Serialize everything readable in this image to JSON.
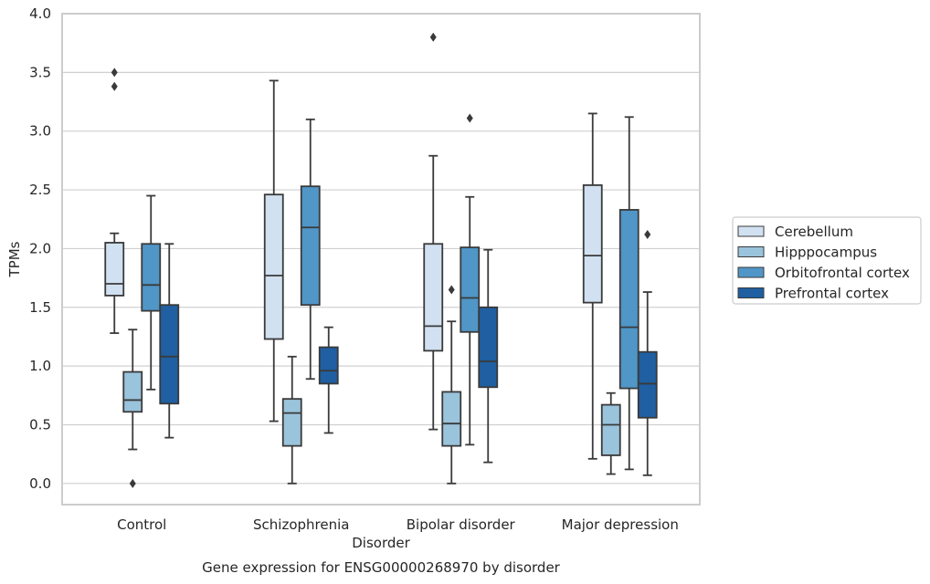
{
  "chart_data": {
    "type": "boxplot",
    "xlabel": "Disorder",
    "ylabel": "TPMs",
    "caption": "Gene expression for ENSG00000268970 by disorder",
    "ylim": [
      -0.18,
      4.0
    ],
    "yticks": [
      "0.0",
      "0.5",
      "1.0",
      "1.5",
      "2.0",
      "2.5",
      "3.0",
      "3.5",
      "4.0"
    ],
    "grid": "horizontal",
    "legend_position": "right",
    "categories": [
      "Control",
      "Schizophrenia",
      "Bipolar disorder",
      "Major depression"
    ],
    "series": [
      {
        "name": "Cerebellum",
        "color": "#d1e1f1",
        "boxes": [
          {
            "whislo": 1.28,
            "q1": 1.6,
            "med": 1.7,
            "q3": 2.05,
            "whishi": 2.13,
            "fliers": [
              3.38,
              3.5
            ]
          },
          {
            "whislo": 0.53,
            "q1": 1.23,
            "med": 1.77,
            "q3": 2.46,
            "whishi": 3.43,
            "fliers": []
          },
          {
            "whislo": 0.46,
            "q1": 1.13,
            "med": 1.34,
            "q3": 2.04,
            "whishi": 2.79,
            "fliers": [
              3.8
            ]
          },
          {
            "whislo": 0.21,
            "q1": 1.54,
            "med": 1.94,
            "q3": 2.54,
            "whishi": 3.15,
            "fliers": []
          }
        ]
      },
      {
        "name": "Hipppocampus",
        "color": "#9ac3dc",
        "boxes": [
          {
            "whislo": 0.29,
            "q1": 0.61,
            "med": 0.71,
            "q3": 0.95,
            "whishi": 1.31,
            "fliers": [
              0.0
            ]
          },
          {
            "whislo": 0.0,
            "q1": 0.32,
            "med": 0.6,
            "q3": 0.72,
            "whishi": 1.08,
            "fliers": []
          },
          {
            "whislo": 0.0,
            "q1": 0.32,
            "med": 0.51,
            "q3": 0.78,
            "whishi": 1.38,
            "fliers": [
              1.65
            ]
          },
          {
            "whislo": 0.08,
            "q1": 0.24,
            "med": 0.5,
            "q3": 0.67,
            "whishi": 0.77,
            "fliers": []
          }
        ]
      },
      {
        "name": "Orbitofrontal cortex",
        "color": "#5096c7",
        "boxes": [
          {
            "whislo": 0.8,
            "q1": 1.47,
            "med": 1.69,
            "q3": 2.04,
            "whishi": 2.45,
            "fliers": []
          },
          {
            "whislo": 0.89,
            "q1": 1.52,
            "med": 2.18,
            "q3": 2.53,
            "whishi": 3.1,
            "fliers": []
          },
          {
            "whislo": 0.33,
            "q1": 1.29,
            "med": 1.58,
            "q3": 2.01,
            "whishi": 2.44,
            "fliers": [
              3.11
            ]
          },
          {
            "whislo": 0.12,
            "q1": 0.81,
            "med": 1.33,
            "q3": 2.33,
            "whishi": 3.12,
            "fliers": []
          }
        ]
      },
      {
        "name": "Prefrontal cortex",
        "color": "#1f5fa2",
        "boxes": [
          {
            "whislo": 0.39,
            "q1": 0.68,
            "med": 1.08,
            "q3": 1.52,
            "whishi": 2.04,
            "fliers": []
          },
          {
            "whislo": 0.43,
            "q1": 0.85,
            "med": 0.96,
            "q3": 1.16,
            "whishi": 1.33,
            "fliers": []
          },
          {
            "whislo": 0.18,
            "q1": 0.82,
            "med": 1.04,
            "q3": 1.5,
            "whishi": 1.99,
            "fliers": []
          },
          {
            "whislo": 0.07,
            "q1": 0.56,
            "med": 0.85,
            "q3": 1.12,
            "whishi": 1.63,
            "fliers": [
              2.12
            ]
          }
        ]
      }
    ]
  }
}
